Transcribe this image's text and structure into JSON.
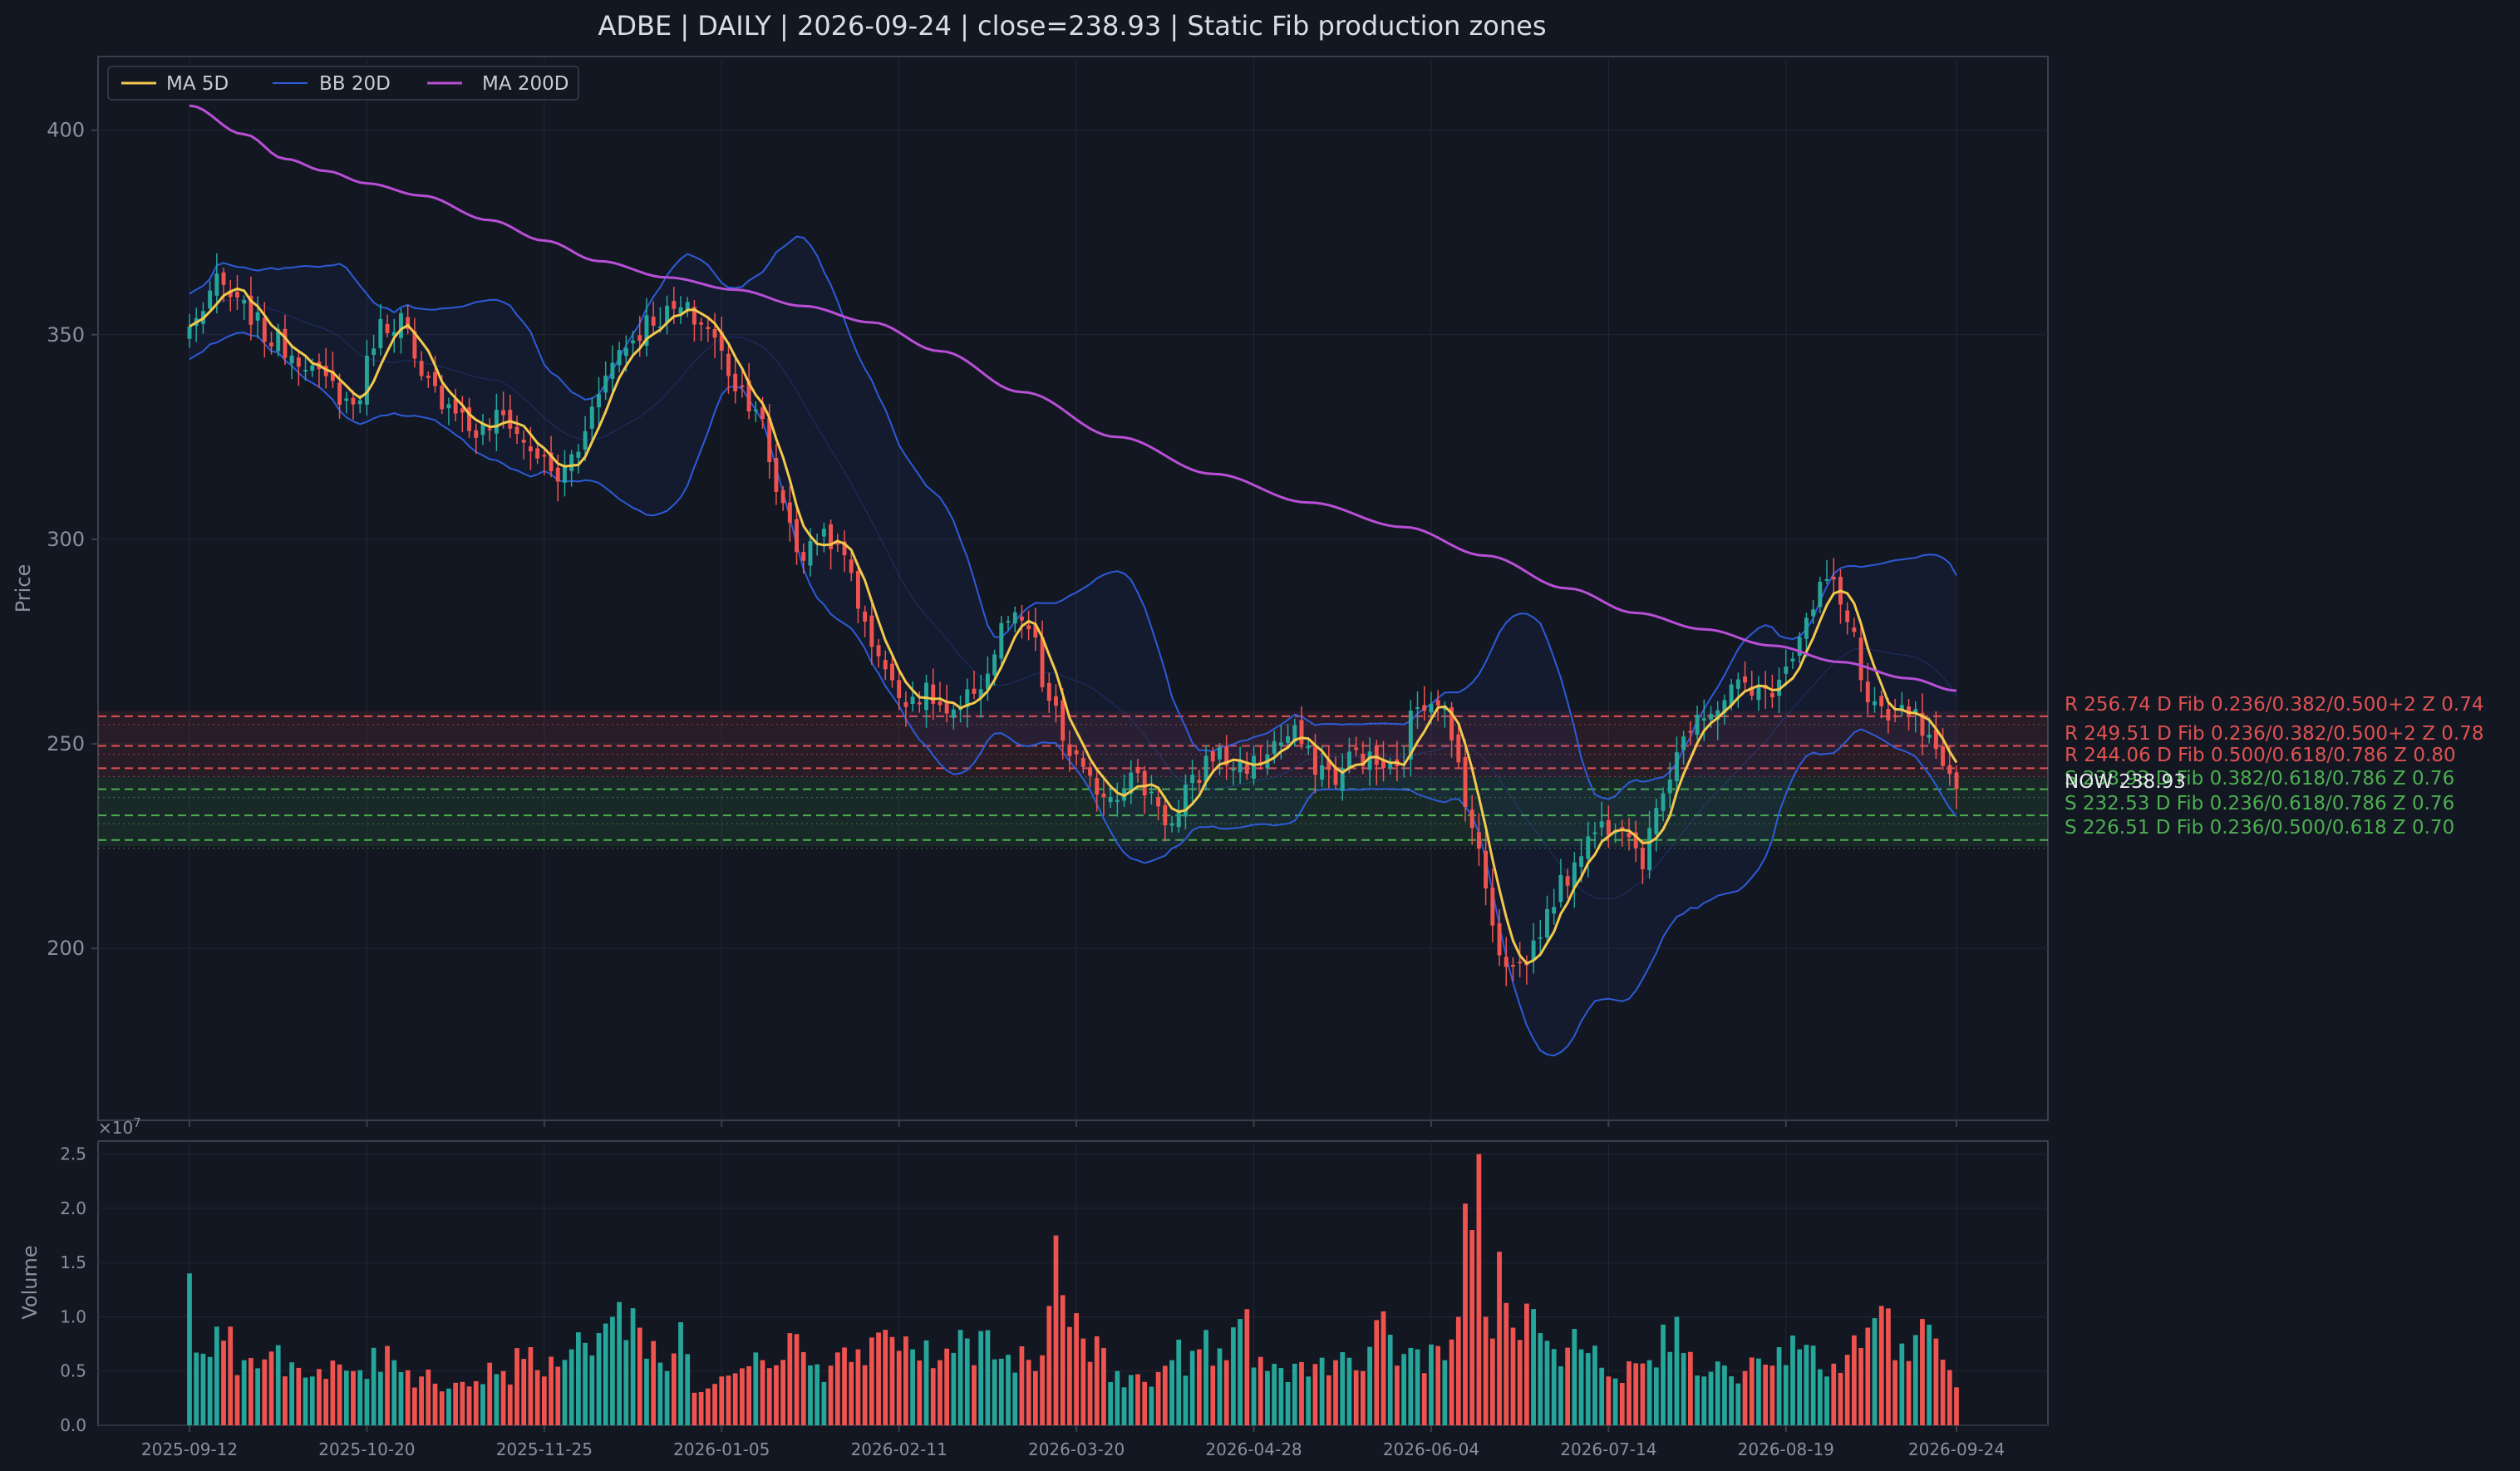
{
  "chart_data": {
    "type": "candlestick",
    "title": "ADBE  |  DAILY  |  2026-09-24  |  close=238.93  |  Static Fib production zones",
    "ticker": "ADBE",
    "timeframe": "DAILY",
    "ylabel": "Price",
    "volume_label": "Volume",
    "volume_scale_label": "×10",
    "volume_scale_exp": "7",
    "ylim": [
      158,
      418
    ],
    "yticks": [
      200,
      250,
      300,
      350,
      400
    ],
    "volume_ylim": [
      0,
      2.62
    ],
    "volume_ticks": [
      0.0,
      0.5,
      1.0,
      1.5,
      2.0,
      2.5
    ],
    "volume_tick_labels": [
      "0.0",
      "0.5",
      "1.0",
      "1.5",
      "2.0",
      "2.5"
    ],
    "x_tick_labels": [
      "2025-09-12",
      "2025-10-20",
      "2025-11-25",
      "2026-01-05",
      "2026-02-11",
      "2026-03-20",
      "2026-04-28",
      "2026-06-04",
      "2026-07-14",
      "2026-08-19",
      "2026-09-24"
    ],
    "x_tick_positions": [
      0,
      26,
      52,
      78,
      104,
      130,
      156,
      182,
      208,
      234,
      259
    ],
    "n_bars": 260,
    "grid": true,
    "legend_position": "top-left",
    "legend": [
      {
        "name": "MA 5D",
        "color": "#f2c94c"
      },
      {
        "name": "BB 20D",
        "color": "#2d5bd8"
      },
      {
        "name": "MA 200D",
        "color": "#b84fd6"
      }
    ],
    "close_anchors": [
      [
        0,
        352
      ],
      [
        4,
        362
      ],
      [
        8,
        356
      ],
      [
        12,
        349
      ],
      [
        16,
        345
      ],
      [
        20,
        338
      ],
      [
        24,
        333
      ],
      [
        28,
        352
      ],
      [
        31,
        354
      ],
      [
        34,
        338
      ],
      [
        38,
        334
      ],
      [
        42,
        326
      ],
      [
        46,
        330
      ],
      [
        50,
        322
      ],
      [
        54,
        315
      ],
      [
        57,
        322
      ],
      [
        60,
        338
      ],
      [
        64,
        348
      ],
      [
        68,
        354
      ],
      [
        72,
        356
      ],
      [
        76,
        352
      ],
      [
        78,
        345
      ],
      [
        80,
        338
      ],
      [
        83,
        333
      ],
      [
        86,
        312
      ],
      [
        90,
        296
      ],
      [
        93,
        302
      ],
      [
        96,
        295
      ],
      [
        100,
        275
      ],
      [
        104,
        262
      ],
      [
        108,
        262
      ],
      [
        112,
        256
      ],
      [
        116,
        265
      ],
      [
        120,
        280
      ],
      [
        123,
        278
      ],
      [
        126,
        260
      ],
      [
        129,
        248
      ],
      [
        132,
        240
      ],
      [
        135,
        238
      ],
      [
        138,
        242
      ],
      [
        141,
        238
      ],
      [
        144,
        230
      ],
      [
        147,
        240
      ],
      [
        150,
        248
      ],
      [
        153,
        245
      ],
      [
        156,
        245
      ],
      [
        159,
        250
      ],
      [
        162,
        252
      ],
      [
        165,
        245
      ],
      [
        168,
        242
      ],
      [
        171,
        248
      ],
      [
        174,
        245
      ],
      [
        177,
        243
      ],
      [
        180,
        260
      ],
      [
        183,
        262
      ],
      [
        186,
        245
      ],
      [
        188,
        230
      ],
      [
        190,
        215
      ],
      [
        192,
        200
      ],
      [
        194,
        195
      ],
      [
        196,
        197
      ],
      [
        198,
        205
      ],
      [
        201,
        215
      ],
      [
        204,
        225
      ],
      [
        207,
        230
      ],
      [
        210,
        232
      ],
      [
        213,
        222
      ],
      [
        216,
        240
      ],
      [
        219,
        252
      ],
      [
        222,
        255
      ],
      [
        225,
        262
      ],
      [
        228,
        265
      ],
      [
        231,
        262
      ],
      [
        234,
        270
      ],
      [
        237,
        280
      ],
      [
        240,
        290
      ],
      [
        243,
        282
      ],
      [
        246,
        260
      ],
      [
        249,
        255
      ],
      [
        252,
        258
      ],
      [
        255,
        250
      ],
      [
        257,
        242
      ],
      [
        259,
        238.93
      ]
    ],
    "volume_anchors": [
      [
        0,
        1.4
      ],
      [
        1,
        0.67
      ],
      [
        2,
        0.66
      ],
      [
        3,
        0.63
      ],
      [
        5,
        0.78
      ],
      [
        8,
        0.6
      ],
      [
        12,
        0.68
      ],
      [
        18,
        0.45
      ],
      [
        24,
        0.5
      ],
      [
        30,
        0.6
      ],
      [
        34,
        0.45
      ],
      [
        40,
        0.4
      ],
      [
        46,
        0.5
      ],
      [
        50,
        0.72
      ],
      [
        52,
        0.45
      ],
      [
        56,
        0.7
      ],
      [
        60,
        0.85
      ],
      [
        62,
        1.0
      ],
      [
        66,
        0.9
      ],
      [
        70,
        0.5
      ],
      [
        72,
        0.95
      ],
      [
        74,
        0.3
      ],
      [
        78,
        0.45
      ],
      [
        84,
        0.6
      ],
      [
        88,
        0.85
      ],
      [
        94,
        0.55
      ],
      [
        98,
        0.7
      ],
      [
        102,
        0.88
      ],
      [
        106,
        0.7
      ],
      [
        110,
        0.6
      ],
      [
        114,
        0.8
      ],
      [
        120,
        0.65
      ],
      [
        124,
        0.5
      ],
      [
        126,
        1.1
      ],
      [
        127,
        1.75
      ],
      [
        128,
        1.2
      ],
      [
        131,
        0.8
      ],
      [
        136,
        0.5
      ],
      [
        140,
        0.4
      ],
      [
        144,
        0.6
      ],
      [
        148,
        0.7
      ],
      [
        152,
        0.6
      ],
      [
        154,
        0.98
      ],
      [
        158,
        0.5
      ],
      [
        164,
        0.45
      ],
      [
        168,
        0.6
      ],
      [
        172,
        0.5
      ],
      [
        175,
        1.05
      ],
      [
        177,
        0.55
      ],
      [
        180,
        0.7
      ],
      [
        184,
        0.6
      ],
      [
        188,
        1.8
      ],
      [
        189,
        2.5
      ],
      [
        190,
        1.0
      ],
      [
        191,
        0.8
      ],
      [
        192,
        1.6
      ],
      [
        194,
        0.9
      ],
      [
        198,
        0.85
      ],
      [
        204,
        0.7
      ],
      [
        208,
        0.45
      ],
      [
        214,
        0.6
      ],
      [
        218,
        1.0
      ],
      [
        222,
        0.45
      ],
      [
        228,
        0.5
      ],
      [
        232,
        0.55
      ],
      [
        236,
        0.7
      ],
      [
        240,
        0.45
      ],
      [
        243,
        0.65
      ],
      [
        246,
        0.9
      ],
      [
        248,
        1.1
      ],
      [
        250,
        0.6
      ],
      [
        254,
        0.98
      ],
      [
        256,
        0.8
      ],
      [
        259,
        0.35
      ]
    ],
    "ma200_anchors": [
      [
        0,
        406
      ],
      [
        8,
        399
      ],
      [
        14,
        393
      ],
      [
        20,
        390
      ],
      [
        26,
        387
      ],
      [
        34,
        384
      ],
      [
        44,
        378
      ],
      [
        52,
        373
      ],
      [
        60,
        368
      ],
      [
        70,
        364
      ],
      [
        80,
        361
      ],
      [
        90,
        357
      ],
      [
        100,
        353
      ],
      [
        110,
        346
      ],
      [
        122,
        336
      ],
      [
        136,
        325
      ],
      [
        150,
        316
      ],
      [
        164,
        309
      ],
      [
        178,
        303
      ],
      [
        190,
        296
      ],
      [
        202,
        288
      ],
      [
        212,
        282
      ],
      [
        222,
        278
      ],
      [
        232,
        274
      ],
      [
        242,
        270
      ],
      [
        252,
        266
      ],
      [
        259,
        263
      ]
    ],
    "zones": [
      {
        "label": "R 256.74  D  Fib 0.236/0.382/0.500+2  Z 0.74",
        "price": 256.74,
        "kind": "resistance",
        "color": "#e05252"
      },
      {
        "label": "R 249.51  D  Fib 0.236/0.382/0.500+2  Z 0.78",
        "price": 249.51,
        "kind": "resistance",
        "color": "#e05252"
      },
      {
        "label": "R 244.06  D  Fib 0.500/0.618/0.786  Z 0.80",
        "price": 244.06,
        "kind": "resistance",
        "color": "#e05252"
      },
      {
        "label": "S 238.93  D  Fib 0.382/0.618/0.786  Z 0.76",
        "price": 238.93,
        "kind": "support",
        "color": "#4caf50"
      },
      {
        "label": "S 232.53  D  Fib 0.236/0.618/0.786  Z 0.76",
        "price": 232.53,
        "kind": "support",
        "color": "#4caf50"
      },
      {
        "label": "S 226.51  D  Fib 0.236/0.500/0.618  Z 0.70",
        "price": 226.51,
        "kind": "support",
        "color": "#4caf50"
      }
    ],
    "now_label": "NOW 238.93",
    "now_price": 238.93,
    "colors": {
      "background": "#131722",
      "up": "#26a69a",
      "down": "#ef5350",
      "ma5": "#f2c94c",
      "bb": "#2d5bd8",
      "ma200": "#b84fd6",
      "grid": "#232734",
      "axis": "#3a3f4b",
      "text": "#8a8f9c"
    }
  }
}
